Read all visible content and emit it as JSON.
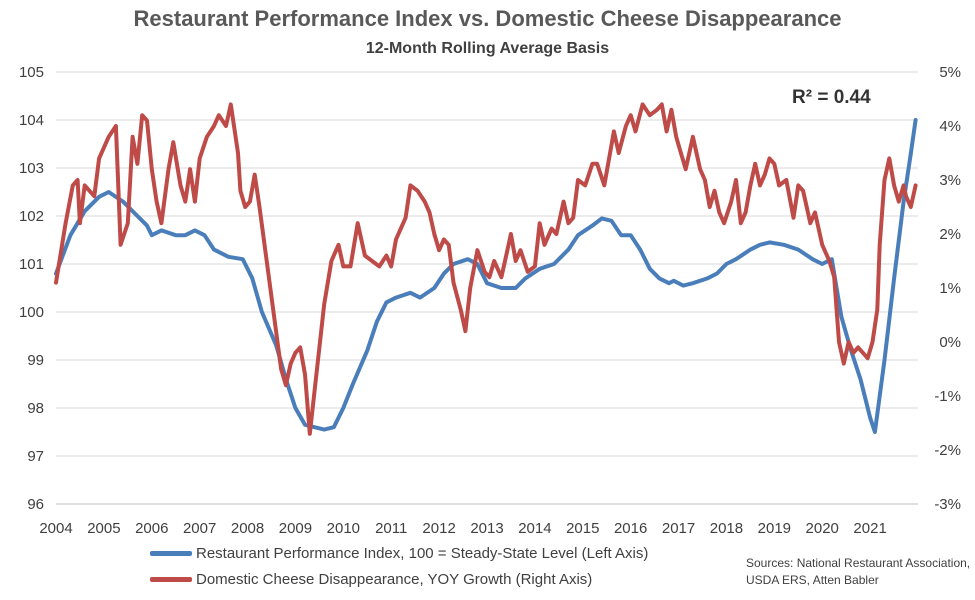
{
  "chart_data": {
    "type": "line",
    "title": "Restaurant Performance Index vs. Domestic Cheese Disappearance",
    "subtitle": "12-Month Rolling Average Basis",
    "annotation": "R² = 0.44",
    "sources": "Sources: National Restaurant Association, USDA ERS, Atten Babler",
    "x_range": [
      2004.0,
      2022.0
    ],
    "x_ticks": [
      "2004",
      "2005",
      "2006",
      "2007",
      "2008",
      "2009",
      "2010",
      "2011",
      "2012",
      "2013",
      "2014",
      "2015",
      "2016",
      "2017",
      "2018",
      "2019",
      "2020",
      "2021"
    ],
    "y_left": {
      "range": [
        96,
        105
      ],
      "ticks": [
        "96",
        "97",
        "98",
        "99",
        "100",
        "101",
        "102",
        "103",
        "104",
        "105"
      ]
    },
    "y_right": {
      "range": [
        -3,
        5
      ],
      "ticks": [
        "-3%",
        "-2%",
        "-1%",
        "0%",
        "1%",
        "2%",
        "3%",
        "4%",
        "5%"
      ]
    },
    "grid": true,
    "legend_position": "bottom",
    "series": [
      {
        "name": "Restaurant Performance Index, 100 = Steady-State Level (Left Axis)",
        "axis": "left",
        "color": "#4a7ebb",
        "points": [
          [
            2004.0,
            100.8
          ],
          [
            2004.3,
            101.6
          ],
          [
            2004.6,
            102.1
          ],
          [
            2004.9,
            102.4
          ],
          [
            2005.1,
            102.5
          ],
          [
            2005.4,
            102.3
          ],
          [
            2005.7,
            102.0
          ],
          [
            2005.9,
            101.8
          ],
          [
            2006.0,
            101.6
          ],
          [
            2006.2,
            101.7
          ],
          [
            2006.5,
            101.6
          ],
          [
            2006.7,
            101.6
          ],
          [
            2006.9,
            101.7
          ],
          [
            2007.1,
            101.6
          ],
          [
            2007.3,
            101.3
          ],
          [
            2007.6,
            101.15
          ],
          [
            2007.9,
            101.1
          ],
          [
            2008.1,
            100.7
          ],
          [
            2008.3,
            100.0
          ],
          [
            2008.6,
            99.3
          ],
          [
            2008.8,
            98.6
          ],
          [
            2009.0,
            98.0
          ],
          [
            2009.2,
            97.65
          ],
          [
            2009.4,
            97.6
          ],
          [
            2009.6,
            97.55
          ],
          [
            2009.8,
            97.6
          ],
          [
            2010.0,
            98.0
          ],
          [
            2010.2,
            98.5
          ],
          [
            2010.5,
            99.2
          ],
          [
            2010.7,
            99.8
          ],
          [
            2010.9,
            100.2
          ],
          [
            2011.1,
            100.3
          ],
          [
            2011.4,
            100.4
          ],
          [
            2011.6,
            100.3
          ],
          [
            2011.9,
            100.5
          ],
          [
            2012.1,
            100.8
          ],
          [
            2012.3,
            101.0
          ],
          [
            2012.6,
            101.1
          ],
          [
            2012.8,
            101.0
          ],
          [
            2013.0,
            100.6
          ],
          [
            2013.3,
            100.5
          ],
          [
            2013.6,
            100.5
          ],
          [
            2013.8,
            100.7
          ],
          [
            2014.1,
            100.9
          ],
          [
            2014.4,
            101.0
          ],
          [
            2014.7,
            101.3
          ],
          [
            2014.9,
            101.6
          ],
          [
            2015.2,
            101.8
          ],
          [
            2015.4,
            101.95
          ],
          [
            2015.6,
            101.9
          ],
          [
            2015.8,
            101.6
          ],
          [
            2016.0,
            101.6
          ],
          [
            2016.2,
            101.3
          ],
          [
            2016.4,
            100.9
          ],
          [
            2016.6,
            100.7
          ],
          [
            2016.8,
            100.6
          ],
          [
            2016.9,
            100.65
          ],
          [
            2017.1,
            100.55
          ],
          [
            2017.3,
            100.6
          ],
          [
            2017.6,
            100.7
          ],
          [
            2017.8,
            100.8
          ],
          [
            2018.0,
            101.0
          ],
          [
            2018.2,
            101.1
          ],
          [
            2018.5,
            101.3
          ],
          [
            2018.7,
            101.4
          ],
          [
            2018.9,
            101.45
          ],
          [
            2019.2,
            101.4
          ],
          [
            2019.5,
            101.3
          ],
          [
            2019.8,
            101.1
          ],
          [
            2020.0,
            101.0
          ],
          [
            2020.2,
            101.1
          ],
          [
            2020.4,
            99.9
          ],
          [
            2020.6,
            99.2
          ],
          [
            2020.8,
            98.6
          ],
          [
            2020.9,
            98.2
          ],
          [
            2021.0,
            97.8
          ],
          [
            2021.1,
            97.5
          ],
          [
            2021.3,
            99.0
          ],
          [
            2021.5,
            100.7
          ],
          [
            2021.7,
            102.3
          ],
          [
            2021.85,
            103.3
          ],
          [
            2021.95,
            104.0
          ]
        ]
      },
      {
        "name": "Domestic Cheese Disappearance, YOY Growth (Right Axis)",
        "axis": "right",
        "color": "#be4b48",
        "points": [
          [
            2004.0,
            1.1
          ],
          [
            2004.2,
            2.2
          ],
          [
            2004.35,
            2.9
          ],
          [
            2004.45,
            3.0
          ],
          [
            2004.5,
            2.2
          ],
          [
            2004.6,
            2.9
          ],
          [
            2004.8,
            2.7
          ],
          [
            2004.9,
            3.4
          ],
          [
            2005.1,
            3.8
          ],
          [
            2005.25,
            4.0
          ],
          [
            2005.35,
            1.8
          ],
          [
            2005.5,
            2.2
          ],
          [
            2005.6,
            3.8
          ],
          [
            2005.7,
            3.3
          ],
          [
            2005.8,
            4.2
          ],
          [
            2005.9,
            4.1
          ],
          [
            2006.0,
            3.2
          ],
          [
            2006.1,
            2.6
          ],
          [
            2006.2,
            2.2
          ],
          [
            2006.35,
            3.2
          ],
          [
            2006.45,
            3.7
          ],
          [
            2006.6,
            2.9
          ],
          [
            2006.7,
            2.6
          ],
          [
            2006.8,
            3.2
          ],
          [
            2006.9,
            2.6
          ],
          [
            2007.0,
            3.4
          ],
          [
            2007.15,
            3.8
          ],
          [
            2007.3,
            4.0
          ],
          [
            2007.4,
            4.2
          ],
          [
            2007.55,
            4.0
          ],
          [
            2007.65,
            4.4
          ],
          [
            2007.7,
            4.1
          ],
          [
            2007.8,
            3.5
          ],
          [
            2007.85,
            2.8
          ],
          [
            2007.95,
            2.5
          ],
          [
            2008.05,
            2.6
          ],
          [
            2008.15,
            3.1
          ],
          [
            2008.25,
            2.5
          ],
          [
            2008.4,
            1.5
          ],
          [
            2008.55,
            0.5
          ],
          [
            2008.7,
            -0.5
          ],
          [
            2008.8,
            -0.8
          ],
          [
            2008.9,
            -0.4
          ],
          [
            2009.0,
            -0.2
          ],
          [
            2009.1,
            -0.1
          ],
          [
            2009.2,
            -0.6
          ],
          [
            2009.3,
            -1.7
          ],
          [
            2009.45,
            -0.5
          ],
          [
            2009.6,
            0.7
          ],
          [
            2009.75,
            1.5
          ],
          [
            2009.9,
            1.8
          ],
          [
            2010.0,
            1.4
          ],
          [
            2010.15,
            1.4
          ],
          [
            2010.3,
            2.2
          ],
          [
            2010.45,
            1.6
          ],
          [
            2010.6,
            1.5
          ],
          [
            2010.75,
            1.4
          ],
          [
            2010.9,
            1.6
          ],
          [
            2011.0,
            1.4
          ],
          [
            2011.1,
            1.9
          ],
          [
            2011.3,
            2.3
          ],
          [
            2011.4,
            2.9
          ],
          [
            2011.55,
            2.8
          ],
          [
            2011.7,
            2.6
          ],
          [
            2011.8,
            2.4
          ],
          [
            2011.9,
            2.0
          ],
          [
            2012.0,
            1.7
          ],
          [
            2012.1,
            1.9
          ],
          [
            2012.2,
            1.8
          ],
          [
            2012.3,
            1.1
          ],
          [
            2012.45,
            0.6
          ],
          [
            2012.55,
            0.2
          ],
          [
            2012.65,
            1.0
          ],
          [
            2012.8,
            1.7
          ],
          [
            2012.95,
            1.3
          ],
          [
            2013.05,
            1.2
          ],
          [
            2013.15,
            1.5
          ],
          [
            2013.3,
            1.2
          ],
          [
            2013.4,
            1.6
          ],
          [
            2013.5,
            2.0
          ],
          [
            2013.6,
            1.5
          ],
          [
            2013.7,
            1.7
          ],
          [
            2013.85,
            1.3
          ],
          [
            2014.0,
            1.4
          ],
          [
            2014.1,
            2.2
          ],
          [
            2014.2,
            1.8
          ],
          [
            2014.35,
            2.1
          ],
          [
            2014.45,
            2.0
          ],
          [
            2014.55,
            2.4
          ],
          [
            2014.6,
            2.6
          ],
          [
            2014.7,
            2.2
          ],
          [
            2014.8,
            2.3
          ],
          [
            2014.9,
            3.0
          ],
          [
            2015.05,
            2.9
          ],
          [
            2015.2,
            3.3
          ],
          [
            2015.3,
            3.3
          ],
          [
            2015.45,
            2.9
          ],
          [
            2015.55,
            3.4
          ],
          [
            2015.65,
            3.9
          ],
          [
            2015.75,
            3.5
          ],
          [
            2015.9,
            4.0
          ],
          [
            2016.0,
            4.2
          ],
          [
            2016.1,
            3.9
          ],
          [
            2016.25,
            4.4
          ],
          [
            2016.4,
            4.2
          ],
          [
            2016.55,
            4.3
          ],
          [
            2016.65,
            4.4
          ],
          [
            2016.75,
            3.9
          ],
          [
            2016.85,
            4.3
          ],
          [
            2016.95,
            3.8
          ],
          [
            2017.05,
            3.5
          ],
          [
            2017.15,
            3.2
          ],
          [
            2017.3,
            3.8
          ],
          [
            2017.45,
            3.2
          ],
          [
            2017.55,
            3.0
          ],
          [
            2017.65,
            2.5
          ],
          [
            2017.75,
            2.8
          ],
          [
            2017.85,
            2.4
          ],
          [
            2017.95,
            2.2
          ],
          [
            2018.1,
            2.6
          ],
          [
            2018.2,
            3.0
          ],
          [
            2018.3,
            2.2
          ],
          [
            2018.4,
            2.4
          ],
          [
            2018.5,
            2.9
          ],
          [
            2018.6,
            3.3
          ],
          [
            2018.7,
            2.9
          ],
          [
            2018.8,
            3.1
          ],
          [
            2018.9,
            3.4
          ],
          [
            2019.0,
            3.3
          ],
          [
            2019.1,
            2.9
          ],
          [
            2019.25,
            3.0
          ],
          [
            2019.4,
            2.3
          ],
          [
            2019.5,
            2.9
          ],
          [
            2019.6,
            2.8
          ],
          [
            2019.75,
            2.2
          ],
          [
            2019.85,
            2.4
          ],
          [
            2019.95,
            2.0
          ],
          [
            2020.0,
            1.8
          ],
          [
            2020.15,
            1.5
          ],
          [
            2020.25,
            1.2
          ],
          [
            2020.35,
            0.0
          ],
          [
            2020.45,
            -0.4
          ],
          [
            2020.55,
            0.0
          ],
          [
            2020.65,
            -0.2
          ],
          [
            2020.75,
            -0.1
          ],
          [
            2020.85,
            -0.2
          ],
          [
            2020.95,
            -0.3
          ],
          [
            2021.05,
            0.0
          ],
          [
            2021.15,
            0.6
          ],
          [
            2021.2,
            1.8
          ],
          [
            2021.3,
            3.0
          ],
          [
            2021.4,
            3.4
          ],
          [
            2021.5,
            2.9
          ],
          [
            2021.6,
            2.6
          ],
          [
            2021.7,
            2.9
          ],
          [
            2021.75,
            2.7
          ],
          [
            2021.85,
            2.5
          ],
          [
            2021.95,
            2.9
          ]
        ]
      }
    ]
  }
}
